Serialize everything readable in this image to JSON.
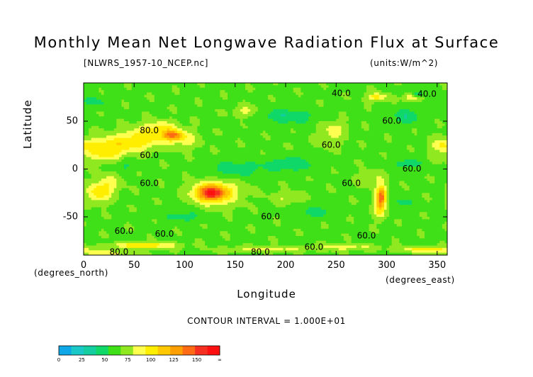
{
  "chart_data": {
    "type": "heatmap",
    "title": "Monthly Mean Net Longwave Radiation Flux at Surface",
    "file_label": "[NLWRS_1957-10_NCEP.nc]",
    "units_label": "(units:W/m^2)",
    "xlabel": "Longitude",
    "ylabel": "Latitude",
    "x_unit_label": "(degrees_east)",
    "y_unit_label": "(degrees_north)",
    "xlim": [
      0,
      360
    ],
    "ylim": [
      -90,
      90
    ],
    "x_ticks": [
      0,
      50,
      100,
      150,
      200,
      250,
      300,
      350
    ],
    "y_ticks": [
      50,
      0,
      -50
    ],
    "contour_interval_text": "CONTOUR INTERVAL = 1.000E+01",
    "background_value": 60,
    "features": [
      {
        "lon": 125,
        "lat": -25,
        "value": 120,
        "width": 14,
        "height": 8
      },
      {
        "lon": 132,
        "lat": -25,
        "value": 100,
        "width": 22,
        "height": 12
      },
      {
        "lon": 22,
        "lat": 20,
        "value": 100,
        "width": 22,
        "height": 12
      },
      {
        "lon": 55,
        "lat": 30,
        "value": 95,
        "width": 24,
        "height": 10
      },
      {
        "lon": 88,
        "lat": 35,
        "value": 115,
        "width": 10,
        "height": 5
      },
      {
        "lon": 75,
        "lat": 42,
        "value": 90,
        "width": 20,
        "height": 8
      },
      {
        "lon": 100,
        "lat": 30,
        "value": 80,
        "width": 15,
        "height": 8
      },
      {
        "lon": 15,
        "lat": -25,
        "value": 95,
        "width": 12,
        "height": 10
      },
      {
        "lon": 25,
        "lat": -15,
        "value": 80,
        "width": 12,
        "height": 9
      },
      {
        "lon": 295,
        "lat": -28,
        "value": 120,
        "width": 5,
        "height": 12
      },
      {
        "lon": 293,
        "lat": -40,
        "value": 90,
        "width": 6,
        "height": 12
      },
      {
        "lon": 285,
        "lat": -10,
        "value": 75,
        "width": 12,
        "height": 8
      },
      {
        "lon": 248,
        "lat": 42,
        "value": 80,
        "width": 12,
        "height": 8
      },
      {
        "lon": 243,
        "lat": 30,
        "value": 75,
        "width": 12,
        "height": 8
      },
      {
        "lon": 200,
        "lat": -30,
        "value": 75,
        "width": 14,
        "height": 6
      },
      {
        "lon": 355,
        "lat": 25,
        "value": 80,
        "width": 12,
        "height": 8
      },
      {
        "lon": 290,
        "lat": 75,
        "value": 95,
        "width": 10,
        "height": 4
      },
      {
        "lon": 325,
        "lat": 75,
        "value": 90,
        "width": 8,
        "height": 4
      },
      {
        "lon": 160,
        "lat": 60,
        "value": 80,
        "width": 12,
        "height": 6
      },
      {
        "lon": 200,
        "lat": 55,
        "value": 40,
        "width": 30,
        "height": 8
      },
      {
        "lon": 320,
        "lat": 55,
        "value": 40,
        "width": 15,
        "height": 8
      },
      {
        "lon": 150,
        "lat": 0,
        "value": 40,
        "width": 25,
        "height": 8
      },
      {
        "lon": 205,
        "lat": 5,
        "value": 40,
        "width": 25,
        "height": 8
      },
      {
        "lon": 40,
        "lat": 5,
        "value": 45,
        "width": 12,
        "height": 7
      },
      {
        "lon": 320,
        "lat": 5,
        "value": 45,
        "width": 15,
        "height": 7
      },
      {
        "lon": 230,
        "lat": -45,
        "value": 45,
        "width": 20,
        "height": 6
      },
      {
        "lon": 315,
        "lat": -35,
        "value": 45,
        "width": 12,
        "height": 6
      },
      {
        "lon": 100,
        "lat": -50,
        "value": 45,
        "width": 20,
        "height": 6
      },
      {
        "lon": 10,
        "lat": 70,
        "value": 45,
        "width": 15,
        "height": 6
      },
      {
        "lon": 330,
        "lat": 78,
        "value": 25,
        "width": 5,
        "height": 3
      },
      {
        "lon": 60,
        "lat": -80,
        "value": 100,
        "width": 30,
        "height": 3
      },
      {
        "lon": 340,
        "lat": -84,
        "value": 95,
        "width": 25,
        "height": 3
      },
      {
        "lon": 180,
        "lat": -84,
        "value": 80,
        "width": 40,
        "height": 3
      },
      {
        "lon": 260,
        "lat": -82,
        "value": 80,
        "width": 30,
        "height": 3
      },
      {
        "lon": 20,
        "lat": -88,
        "value": 85,
        "width": 25,
        "height": 3
      }
    ],
    "contour_labels": [
      {
        "text": "40.0",
        "lon": 255,
        "lat": 79
      },
      {
        "text": "40.0",
        "lon": 340,
        "lat": 78
      },
      {
        "text": "80.0",
        "lon": 65,
        "lat": 40
      },
      {
        "text": "60.0",
        "lon": 305,
        "lat": 50
      },
      {
        "text": "60.0",
        "lon": 245,
        "lat": 25
      },
      {
        "text": "60.0",
        "lon": 65,
        "lat": 14
      },
      {
        "text": "60.0",
        "lon": 325,
        "lat": 0
      },
      {
        "text": "60.0",
        "lon": 65,
        "lat": -15
      },
      {
        "text": "60.0",
        "lon": 265,
        "lat": -15
      },
      {
        "text": "60.0",
        "lon": 185,
        "lat": -50
      },
      {
        "text": "60.0",
        "lon": 40,
        "lat": -65
      },
      {
        "text": "60.0",
        "lon": 80,
        "lat": -68
      },
      {
        "text": "60.0",
        "lon": 280,
        "lat": -70
      },
      {
        "text": "60.0",
        "lon": 228,
        "lat": -82
      },
      {
        "text": "80.0",
        "lon": 35,
        "lat": -87
      },
      {
        "text": "80.0",
        "lon": 175,
        "lat": -87
      }
    ],
    "colorbar": {
      "colors": [
        "#0ea8e8",
        "#1bc8c8",
        "#14cda0",
        "#10d868",
        "#40e018",
        "#90e820",
        "#ffff50",
        "#ffee00",
        "#ffc800",
        "#ffa000",
        "#ff6a14",
        "#f53020",
        "#ff1010"
      ],
      "tick_labels": [
        "0",
        "25",
        "50",
        "75",
        "100",
        "125",
        "150",
        "∞"
      ]
    }
  }
}
